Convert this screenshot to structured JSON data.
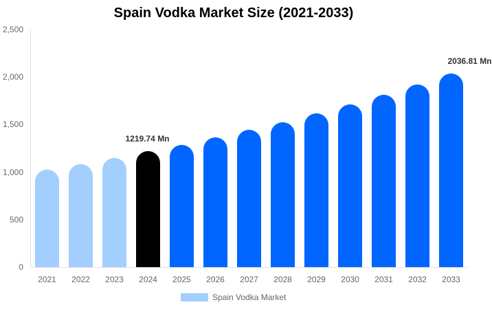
{
  "chart_data": {
    "type": "bar",
    "title": "Spain Vodka Market Size (2021-2033)",
    "xlabel": "",
    "ylabel": "",
    "ylim": [
      0,
      2500
    ],
    "yticks": [
      "0",
      "500",
      "1,000",
      "1,500",
      "2,000",
      "2,500"
    ],
    "grid": false,
    "legend_position": "bottom",
    "categories": [
      "2021",
      "2022",
      "2023",
      "2024",
      "2025",
      "2026",
      "2027",
      "2028",
      "2029",
      "2030",
      "2031",
      "2032",
      "2033"
    ],
    "series": [
      {
        "name": "Spain Vodka Market",
        "values": [
          1026,
          1084,
          1149,
          1219.74,
          1286,
          1366,
          1445,
          1525,
          1618,
          1712,
          1813,
          1922,
          2036.81
        ],
        "colors": [
          "#a3cfff",
          "#a3cfff",
          "#a3cfff",
          "#000000",
          "#0066ff",
          "#0066ff",
          "#0066ff",
          "#0066ff",
          "#0066ff",
          "#0066ff",
          "#0066ff",
          "#0066ff",
          "#0066ff"
        ]
      }
    ],
    "annotations": [
      {
        "category": "2024",
        "text": "1219.74 Mn"
      },
      {
        "category": "2033",
        "text": "2036.81 Mn"
      }
    ]
  },
  "legend": {
    "label": "Spain Vodka Market",
    "color": "#a3cfff"
  }
}
